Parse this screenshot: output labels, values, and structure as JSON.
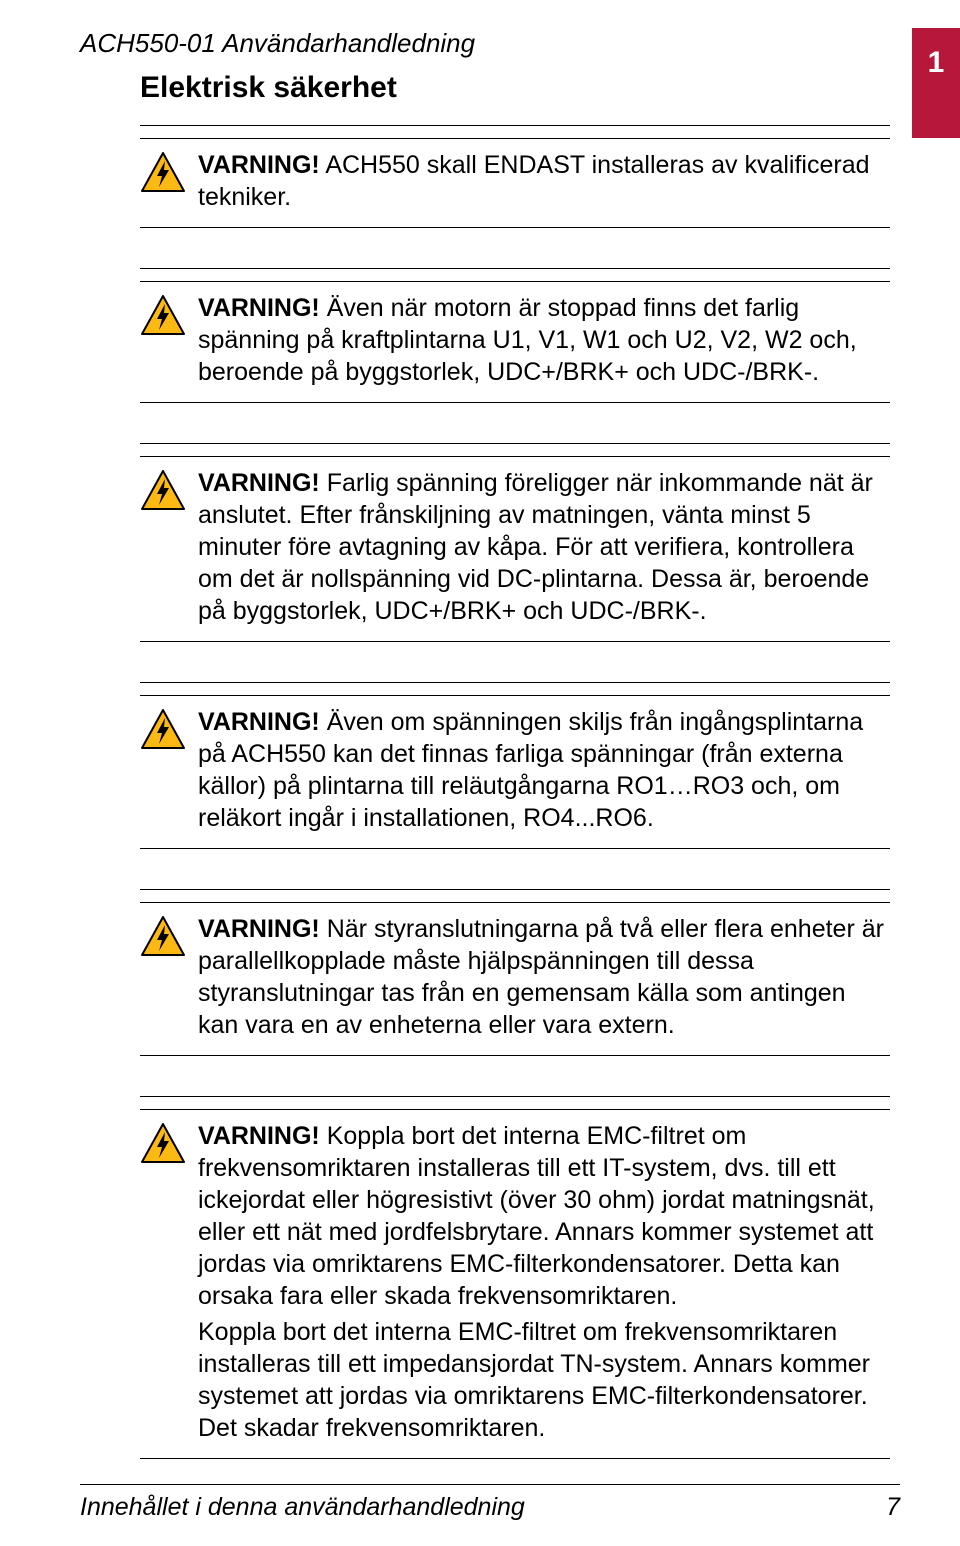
{
  "colors": {
    "chapter_tab_bg": "#b5183b",
    "icon_border": "#000000",
    "icon_fill": "#fcb813",
    "icon_bolt": "#000000",
    "text": "#000000",
    "background": "#ffffff",
    "rule": "#000000"
  },
  "chapter_number": "1",
  "header_doc_title": "ACH550-01 Användarhandledning",
  "section_title": "Elektrisk säkerhet",
  "warnings": [
    {
      "lead": "VARNING!",
      "body": " ACH550 skall ENDAST installeras av kvalificerad tekniker."
    },
    {
      "lead": "VARNING!",
      "body": " Även när motorn är stoppad finns det farlig spänning på kraftplintarna U1, V1, W1 och U2, V2, W2 och, beroende på byggstorlek, UDC+/BRK+ och UDC-/BRK-."
    },
    {
      "lead": "VARNING!",
      "body": " Farlig spänning föreligger när inkommande nät är anslutet. Efter frånskiljning av matningen, vänta minst 5 minuter före avtagning av kåpa. För att verifiera, kontrollera om det är nollspänning vid DC-plintarna. Dessa är, beroende på byggstorlek, UDC+/BRK+ och UDC-/BRK-."
    },
    {
      "lead": "VARNING!",
      "body": " Även om spänningen skiljs från ingångsplintarna på ACH550 kan det finnas farliga spänningar (från externa källor) på plintarna till reläutgångarna RO1…RO3 och, om reläkort ingår i installationen, RO4...RO6."
    },
    {
      "lead": "VARNING!",
      "body": " När styranslutningarna på två eller flera enheter är parallellkopplade måste hjälpspänningen till dessa styranslutningar tas från en gemensam källa som antingen kan vara en av enheterna eller vara extern."
    },
    {
      "lead": "VARNING!",
      "body": " Koppla bort det interna EMC-filtret om frekvensomriktaren installeras till ett IT-system, dvs. till ett ickejordat eller högresistivt (över 30 ohm) jordat matningsnät, eller ett nät med jordfelsbrytare. Annars kommer systemet att jordas via omriktarens EMC-filterkondensatorer. Detta kan orsaka fara eller skada frekvensomriktaren.",
      "body2": "Koppla bort det interna EMC-filtret om frekvensomriktaren installeras till ett impedansjordat TN-system. Annars kommer systemet att jordas via omriktarens EMC-filterkondensatorer. Det skadar frekvensomriktaren."
    }
  ],
  "footer": {
    "text": "Innehållet i denna användarhandledning",
    "page": "7"
  }
}
